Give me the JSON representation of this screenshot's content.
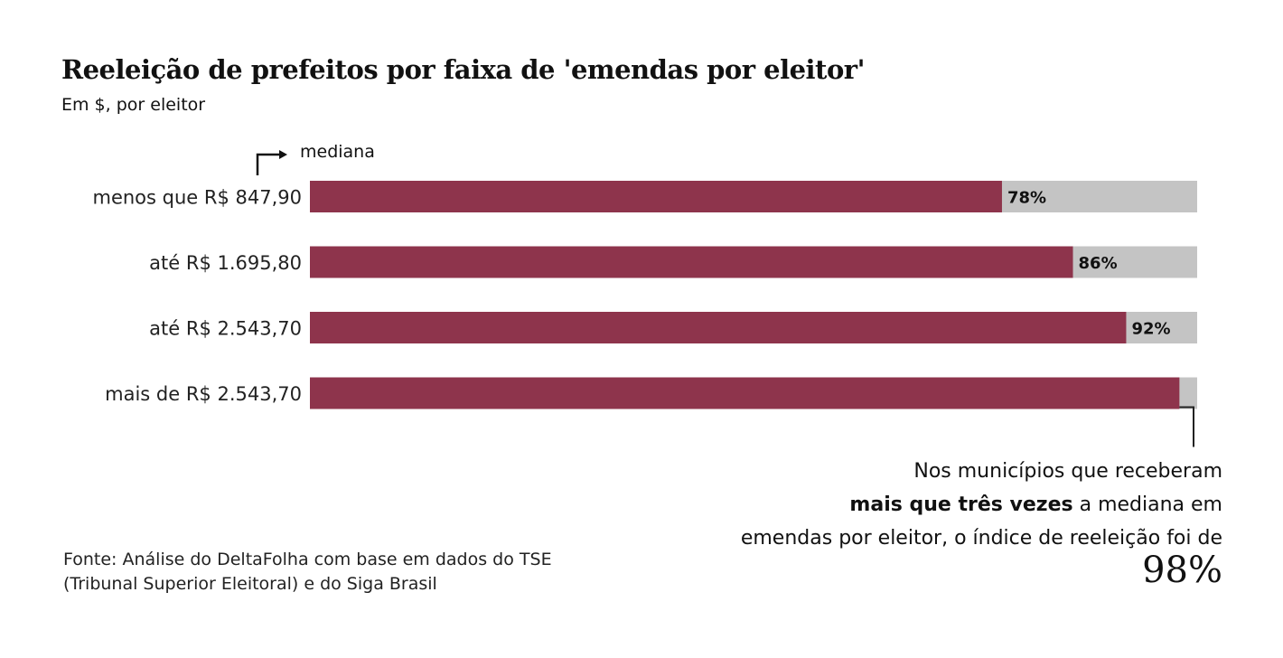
{
  "chart_data": {
    "type": "bar",
    "orientation": "horizontal",
    "title": "Reeleição de prefeitos por faixa de 'emendas por eleitor'",
    "subtitle": "Em $, por eleitor",
    "categories": [
      "menos que R$ 847,90",
      "até R$ 1.695,80",
      "até R$ 2.543,70",
      "mais de R$ 2.543,70"
    ],
    "values": [
      78,
      86,
      92,
      98
    ],
    "value_labels": [
      "78%",
      "86%",
      "92%",
      ""
    ],
    "xlim": [
      0,
      100
    ],
    "unit": "%",
    "bar_color": "#8e344c",
    "track_color": "#c4c4c4",
    "median_annotation": "mediana"
  },
  "annotation": {
    "line1": "Nos municípios que receberam",
    "bold": "mais que três vezes",
    "line2_rest": " a mediana em",
    "line3": "emendas por eleitor, o índice de reeleição foi de",
    "big_value": "98%"
  },
  "source": {
    "line1": "Fonte: Análise do DeltaFolha com base em dados do TSE",
    "line2": "(Tribunal Superior Eleitoral) e do Siga Brasil"
  }
}
